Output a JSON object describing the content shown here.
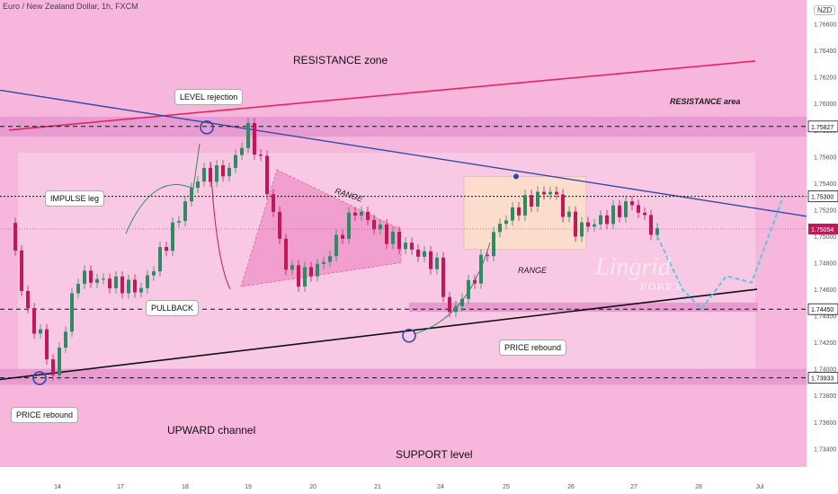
{
  "header": {
    "symbol_line": "Euro / New Zealand Dollar, 1h, FXCM"
  },
  "currency_badge": "NZD",
  "colors": {
    "zone": "#f7b6dc",
    "band": "#e79bd0",
    "resistance_line": "#e8245f",
    "trend_line": "#2f4aa8",
    "channel_line": "#111111",
    "up_candle": "#2e8b62",
    "down_candle": "#c2185b",
    "projection": "#5ac8e0",
    "range_box": "#fde0c8"
  },
  "labels": {
    "resistance_zone": "RESISTANCE zone",
    "resistance_area": "RESISTANCE area",
    "level_rejection": "LEVEL rejection",
    "impulse_leg": "IMPULSE leg",
    "pullback": "PULLBACK",
    "range_1": "RANGE",
    "range_2": "RANGE",
    "price_rebound_left": "PRICE rebound",
    "price_rebound_right": "PRICE rebound",
    "upward_channel": "UPWARD channel",
    "support_level": "SUPPORT level"
  },
  "watermark": {
    "brand": "Lingrid",
    "sub": "FOREX"
  },
  "chart_data": {
    "type": "candlestick",
    "title": "",
    "y_ticks": [
      1.766,
      1.764,
      1.762,
      1.76,
      1.758,
      1.756,
      1.754,
      1.752,
      1.75,
      1.748,
      1.746,
      1.744,
      1.742,
      1.74,
      1.738,
      1.736,
      1.734
    ],
    "x_ticks": [
      "14",
      "17",
      "18",
      "19",
      "20",
      "21",
      "24",
      "25",
      "26",
      "27",
      "28",
      "Jul"
    ],
    "ylim": [
      1.7326,
      1.7678
    ],
    "levels": [
      {
        "value": 1.75827,
        "label": "1.75827",
        "style": "dashed"
      },
      {
        "value": 1.753,
        "label": "1.75300",
        "style": "dotted"
      },
      {
        "value": 1.7445,
        "label": "1.74450",
        "style": "dashed"
      },
      {
        "value": 1.73933,
        "label": "1.73933",
        "style": "dashed"
      }
    ],
    "last_price": {
      "value": 1.75054,
      "label": "1.75054"
    },
    "path": [
      [
        0,
        1.751
      ],
      [
        3,
        1.744
      ],
      [
        5,
        1.7425
      ],
      [
        7,
        1.7395
      ],
      [
        11,
        1.747
      ],
      [
        16,
        1.7465
      ],
      [
        21,
        1.746
      ],
      [
        25,
        1.7495
      ],
      [
        30,
        1.7545
      ],
      [
        35,
        1.755
      ],
      [
        38,
        1.758
      ],
      [
        40,
        1.7555
      ],
      [
        44,
        1.7478
      ],
      [
        46,
        1.7468
      ],
      [
        50,
        1.748
      ],
      [
        55,
        1.752
      ],
      [
        60,
        1.75
      ],
      [
        64,
        1.749
      ],
      [
        68,
        1.7478
      ],
      [
        70,
        1.744
      ],
      [
        74,
        1.747
      ],
      [
        78,
        1.751
      ],
      [
        82,
        1.7525
      ],
      [
        86,
        1.7535
      ],
      [
        90,
        1.7505
      ],
      [
        94,
        1.7512
      ],
      [
        99,
        1.7525
      ],
      [
        103,
        1.75
      ]
    ],
    "projection": [
      [
        103,
        1.75
      ],
      [
        107,
        1.746
      ],
      [
        110,
        1.7445
      ],
      [
        114,
        1.747
      ],
      [
        118,
        1.7465
      ],
      [
        123,
        1.753
      ]
    ]
  }
}
